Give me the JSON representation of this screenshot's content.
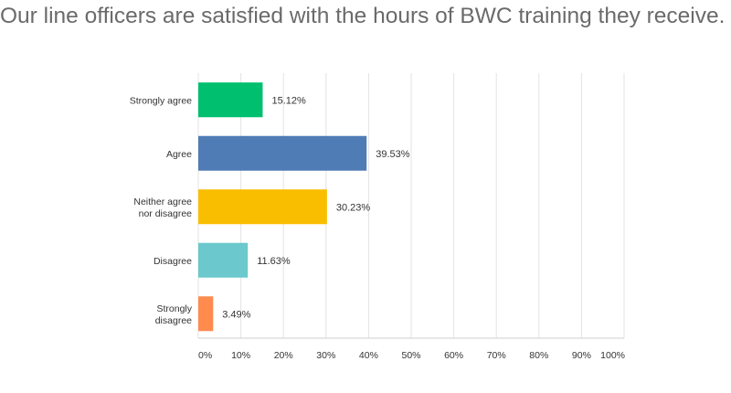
{
  "chart_data": {
    "type": "bar",
    "orientation": "horizontal",
    "title": "Our line officers are satisfied with the hours of BWC training they receive.",
    "categories": [
      [
        "Strongly agree"
      ],
      [
        "Agree"
      ],
      [
        "Neither agree",
        "nor disagree"
      ],
      [
        "Disagree"
      ],
      [
        "Strongly",
        "disagree"
      ]
    ],
    "values": [
      15.12,
      39.53,
      30.23,
      11.63,
      3.49
    ],
    "value_labels": [
      "15.12%",
      "39.53%",
      "30.23%",
      "11.63%",
      "3.49%"
    ],
    "colors": [
      "#00bf6f",
      "#507cb6",
      "#f9be00",
      "#6bc8cd",
      "#ff8b4f"
    ],
    "xlim": [
      0,
      100
    ],
    "ticks": [
      "0%",
      "10%",
      "20%",
      "30%",
      "40%",
      "50%",
      "60%",
      "70%",
      "80%",
      "90%",
      "100%"
    ],
    "grid": true,
    "xlabel": "",
    "ylabel": ""
  }
}
